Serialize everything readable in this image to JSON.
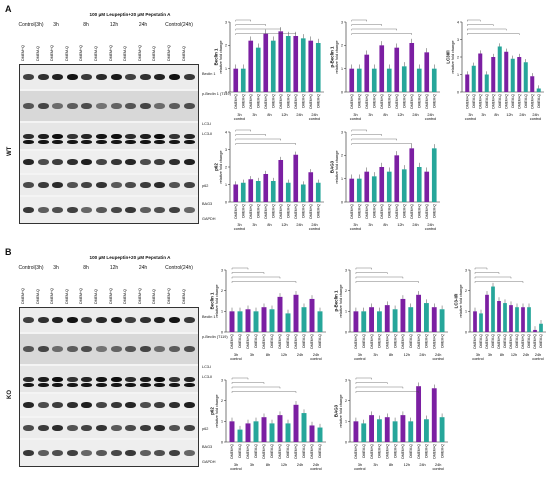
{
  "panels": [
    {
      "letter": "A",
      "genotype": "WT",
      "treatment": "100 μM Leupeptin+20 μM Pepstatin A",
      "timepoints": [
        "Control(3h)",
        "3h",
        "8h",
        "12h",
        "24h",
        "Control(24h)"
      ],
      "lane_labels": [
        "DMEM+Q",
        "DMEM-Q",
        "DMEM+Q",
        "DMEM-Q",
        "DMEM+Q",
        "DMEM-Q",
        "DMEM+Q",
        "DMEM-Q",
        "DMEM+Q",
        "DMEM-Q",
        "DMEM+Q",
        "DMEM-Q"
      ],
      "blots": [
        "Beclin 1",
        "p-Beclin 1 (T119)",
        "LC3-I",
        "LC3-II",
        "p62",
        "BAG3",
        "GAPDH"
      ]
    },
    {
      "letter": "B",
      "genotype": "KO",
      "treatment": "100 μM Leupeptin+20 μM Pepstatin A",
      "timepoints": [
        "Control(3h)",
        "3h",
        "8h",
        "12h",
        "24h",
        "Control(24h)"
      ],
      "lane_labels": [
        "DMEM+Q",
        "DMEM-Q",
        "DMEM+Q",
        "DMEM-Q",
        "DMEM+Q",
        "DMEM-Q",
        "DMEM+Q",
        "DMEM-Q",
        "DMEM+Q",
        "DMEM-Q",
        "DMEM+Q",
        "DMEM-Q"
      ],
      "blots": [
        "Beclin 1",
        "p-Beclin (T119)",
        "LC3-I",
        "LC3-II",
        "p62",
        "BAG3",
        "GAPDH"
      ]
    }
  ],
  "colors": {
    "purple": "#7b1fa2",
    "teal": "#26a69a"
  },
  "chart_data": [
    {
      "type": "bar",
      "panel": "A",
      "ylabel": "Beclin 1 relative fold change",
      "ylim": [
        0,
        3
      ],
      "bar_labels": [
        "DMEM+Q",
        "DMEM-Q",
        "DMEM+Q",
        "DMEM-Q",
        "DMEM+Q",
        "DMEM-Q",
        "DMEM+Q",
        "DMEM-Q",
        "DMEM+Q",
        "DMEM-Q",
        "DMEM+Q",
        "DMEM-Q"
      ],
      "groups": [
        "3h control",
        "3h",
        "8h",
        "12h",
        "24h",
        "24h control"
      ],
      "values": [
        1.0,
        1.0,
        2.2,
        1.9,
        2.5,
        2.2,
        2.6,
        2.4,
        2.4,
        2.3,
        2.2,
        2.1
      ]
    },
    {
      "type": "bar",
      "panel": "A",
      "ylabel": "p-Beclin 1 relative fold change",
      "ylim": [
        0,
        3
      ],
      "bar_labels": [
        "DMEM+Q",
        "DMEM-Q",
        "DMEM+Q",
        "DMEM-Q",
        "DMEM+Q",
        "DMEM-Q",
        "DMEM+Q",
        "DMEM-Q",
        "DMEM+Q",
        "DMEM-Q",
        "DMEM+Q",
        "DMEM-Q"
      ],
      "groups": [
        "3h control",
        "3h",
        "8h",
        "12h",
        "24h",
        "24h control"
      ],
      "values": [
        1.0,
        1.0,
        1.6,
        1.0,
        2.0,
        1.0,
        1.9,
        1.1,
        2.1,
        1.0,
        1.7,
        1.0
      ]
    },
    {
      "type": "bar",
      "panel": "A",
      "ylabel": "LC3II/I relative fold change",
      "ylim": [
        0,
        4
      ],
      "bar_labels": [
        "DMEM+Q",
        "DMEM-Q",
        "DMEM+Q",
        "DMEM-Q",
        "DMEM+Q",
        "DMEM-Q",
        "DMEM+Q",
        "DMEM-Q",
        "DMEM+Q",
        "DMEM-Q",
        "DMEM+Q",
        "DMEM-Q"
      ],
      "groups": [
        "3h control",
        "3h",
        "8h",
        "12h",
        "24h",
        "24h control"
      ],
      "values": [
        1.0,
        1.5,
        2.2,
        1.0,
        2.0,
        2.6,
        2.3,
        1.9,
        2.0,
        1.7,
        0.9,
        0.2
      ]
    },
    {
      "type": "bar",
      "panel": "A",
      "ylabel": "p62 relative fold change",
      "ylim": [
        0,
        4
      ],
      "bar_labels": [
        "DMEM+Q",
        "DMEM-Q",
        "DMEM+Q",
        "DMEM-Q",
        "DMEM+Q",
        "DMEM-Q",
        "DMEM+Q",
        "DMEM-Q",
        "DMEM+Q",
        "DMEM-Q",
        "DMEM+Q",
        "DMEM-Q"
      ],
      "groups": [
        "3h control",
        "3h",
        "8h",
        "12h",
        "24h",
        "24h control"
      ],
      "values": [
        1.0,
        1.1,
        1.3,
        1.2,
        1.6,
        1.2,
        2.4,
        1.1,
        2.7,
        1.0,
        1.7,
        1.1
      ]
    },
    {
      "type": "bar",
      "panel": "A",
      "ylabel": "BAG3 relative fold change",
      "ylim": [
        0,
        3
      ],
      "bar_labels": [
        "DMEM+Q",
        "DMEM-Q",
        "DMEM+Q",
        "DMEM-Q",
        "DMEM+Q",
        "DMEM-Q",
        "DMEM+Q",
        "DMEM-Q",
        "DMEM+Q",
        "DMEM-Q",
        "DMEM+Q",
        "DMEM-Q"
      ],
      "groups": [
        "3h control",
        "3h",
        "8h",
        "12h",
        "24h",
        "24h control"
      ],
      "values": [
        1.0,
        1.0,
        1.3,
        1.1,
        1.5,
        1.3,
        2.0,
        1.4,
        2.3,
        1.5,
        1.3,
        2.3
      ]
    },
    {
      "type": "bar",
      "panel": "B",
      "ylabel": "Beclin 1 relative fold change",
      "ylim": [
        0,
        3
      ],
      "bar_labels": [
        "DMEM+Q",
        "DMEM-Q",
        "DMEM+Q",
        "DMEM-Q",
        "DMEM+Q",
        "DMEM-Q",
        "DMEM+Q",
        "DMEM-Q",
        "DMEM+Q",
        "DMEM-Q",
        "DMEM+Q",
        "DMEM-Q"
      ],
      "groups": [
        "3h control",
        "3h",
        "8h",
        "12h",
        "24h",
        "24h control"
      ],
      "values": [
        1.0,
        1.0,
        1.1,
        1.0,
        1.2,
        1.1,
        1.7,
        0.9,
        1.8,
        1.2,
        1.6,
        1.0
      ]
    },
    {
      "type": "bar",
      "panel": "B",
      "ylabel": "p-Beclin 1 relative fold change",
      "ylim": [
        0,
        3
      ],
      "bar_labels": [
        "DMEM+Q",
        "DMEM-Q",
        "DMEM+Q",
        "DMEM-Q",
        "DMEM+Q",
        "DMEM-Q",
        "DMEM+Q",
        "DMEM-Q",
        "DMEM+Q",
        "DMEM-Q",
        "DMEM+Q",
        "DMEM-Q"
      ],
      "groups": [
        "3h control",
        "3h",
        "8h",
        "12h",
        "24h",
        "24h control"
      ],
      "values": [
        1.0,
        1.0,
        1.2,
        1.0,
        1.3,
        1.1,
        1.6,
        1.2,
        1.8,
        1.4,
        1.2,
        1.1
      ]
    },
    {
      "type": "bar",
      "panel": "B",
      "ylabel": "LC3-II/I relative fold change",
      "ylim": [
        0,
        3
      ],
      "bar_labels": [
        "DMEM+Q",
        "DMEM-Q",
        "DMEM+Q",
        "DMEM-Q",
        "DMEM+Q",
        "DMEM-Q",
        "DMEM+Q",
        "DMEM-Q",
        "DMEM+Q",
        "DMEM-Q",
        "DMEM+Q",
        "DMEM-Q"
      ],
      "groups": [
        "3h control",
        "3h",
        "8h",
        "12h",
        "24h",
        "24h control"
      ],
      "values": [
        1.0,
        0.9,
        1.8,
        2.2,
        1.5,
        1.4,
        1.3,
        1.2,
        1.2,
        1.2,
        0.1,
        0.4
      ]
    },
    {
      "type": "bar",
      "panel": "B",
      "ylabel": "p62 relative fold change",
      "ylim": [
        0,
        3
      ],
      "bar_labels": [
        "DMEM+Q",
        "DMEM-Q",
        "DMEM+Q",
        "DMEM-Q",
        "DMEM+Q",
        "DMEM-Q",
        "DMEM+Q",
        "DMEM-Q",
        "DMEM+Q",
        "DMEM-Q",
        "DMEM+Q",
        "DMEM-Q"
      ],
      "groups": [
        "3h control",
        "3h",
        "8h",
        "12h",
        "24h",
        "24h control"
      ],
      "values": [
        1.0,
        0.6,
        0.9,
        1.0,
        1.2,
        0.9,
        1.3,
        0.9,
        1.8,
        1.4,
        0.8,
        0.7
      ]
    },
    {
      "type": "bar",
      "panel": "B",
      "ylabel": "BAG3 relative fold change",
      "ylim": [
        0,
        3
      ],
      "bar_labels": [
        "DMEM+Q",
        "DMEM-Q",
        "DMEM+Q",
        "DMEM-Q",
        "DMEM+Q",
        "DMEM-Q",
        "DMEM+Q",
        "DMEM-Q",
        "DMEM+Q",
        "DMEM-Q",
        "DMEM+Q",
        "DMEM-Q"
      ],
      "groups": [
        "3h control",
        "3h",
        "8h",
        "12h",
        "24h",
        "24h control"
      ],
      "values": [
        1.0,
        0.9,
        1.3,
        1.1,
        1.2,
        1.0,
        1.3,
        1.0,
        2.7,
        1.1,
        2.6,
        1.2
      ]
    }
  ]
}
